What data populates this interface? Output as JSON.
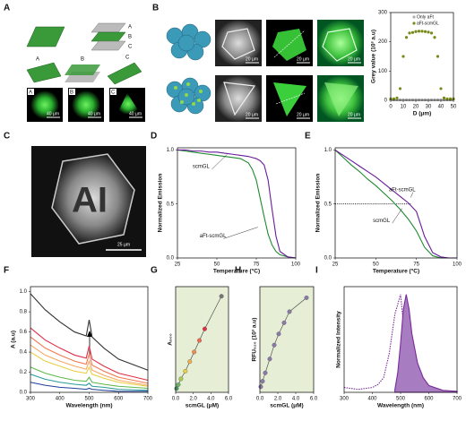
{
  "figure": {
    "panel_labels": [
      "A",
      "B",
      "C",
      "D",
      "E",
      "F",
      "G",
      "H",
      "I"
    ],
    "a_stack_labels": [
      "A",
      "B",
      "C"
    ],
    "a_plane_labels": [
      "A",
      "B",
      "C"
    ],
    "a_image_labels": [
      "A",
      "B",
      "C"
    ],
    "a_scale_bars": [
      "40 µm",
      "40 µm",
      "40 µm"
    ],
    "b_scale_bars": [
      "20 µm",
      "20 µm",
      "20 µm",
      "20 µm",
      "20 µm",
      "20 µm"
    ],
    "c_image_text": "AI",
    "c_scale_bar": "25 µm"
  },
  "chart_data": [
    {
      "type": "scatter",
      "ylabel": "Grey value (10³ a.u)",
      "xlabel": "D (μm)",
      "xlim": [
        0,
        50
      ],
      "ylim": [
        0,
        300
      ],
      "xticks": [
        0,
        10,
        20,
        30,
        40,
        50
      ],
      "yticks": [
        0,
        100,
        200,
        300
      ],
      "legend": "top-right",
      "x": [
        0,
        2.5,
        5,
        7.5,
        10,
        12.5,
        15,
        17.5,
        20,
        22.5,
        25,
        27.5,
        30,
        32.5,
        35,
        37.5,
        40,
        42.5,
        45,
        47.5,
        50
      ],
      "series": [
        {
          "name": "Only aFt",
          "color": "#b0b0b0",
          "values": [
            2,
            2,
            2,
            2,
            2,
            2,
            2,
            2,
            2,
            2,
            2,
            2,
            2,
            2,
            2,
            2,
            2,
            2,
            2,
            2,
            2
          ]
        },
        {
          "name": "aFt-scmGL",
          "color": "#7a8a1a",
          "values": [
            5,
            5,
            8,
            40,
            150,
            215,
            230,
            232,
            235,
            236,
            236,
            235,
            233,
            230,
            215,
            150,
            40,
            8,
            5,
            5,
            5
          ]
        }
      ]
    },
    {
      "type": "line",
      "ylabel": "Normalized Emission",
      "xlabel": "Temperature (°C)",
      "xlim": [
        25,
        100
      ],
      "ylim": [
        0,
        1.02
      ],
      "xticks": [
        25,
        50,
        75,
        100
      ],
      "yticks": [
        {
          "value": 0,
          "label": "0.0"
        },
        0.5,
        {
          "value": 1,
          "label": "1.0"
        }
      ],
      "x": [
        25,
        30,
        35,
        40,
        45,
        50,
        55,
        60,
        65,
        70,
        72.5,
        75,
        77.5,
        80,
        82.5,
        85,
        87.5,
        90,
        95,
        100
      ],
      "series": [
        {
          "name": "scmGL",
          "color": "#1e8a2e",
          "values": [
            1.0,
            0.99,
            0.98,
            0.97,
            0.96,
            0.95,
            0.94,
            0.93,
            0.92,
            0.88,
            0.82,
            0.72,
            0.55,
            0.38,
            0.22,
            0.12,
            0.06,
            0.03,
            0.01,
            0.0
          ]
        },
        {
          "name": "aFt-scmGL",
          "color": "#6a1b9a",
          "values": [
            1.0,
            1.0,
            0.99,
            0.99,
            0.98,
            0.98,
            0.97,
            0.96,
            0.95,
            0.94,
            0.93,
            0.92,
            0.9,
            0.86,
            0.72,
            0.45,
            0.2,
            0.06,
            0.01,
            0.0
          ]
        }
      ]
    },
    {
      "type": "line",
      "ylabel": "Normalized Emission",
      "xlabel": "Temperature (°C)",
      "xlim": [
        25,
        100
      ],
      "ylim": [
        0,
        1.02
      ],
      "xticks": [
        25,
        50,
        75,
        100
      ],
      "yticks": [
        {
          "value": 0,
          "label": "0.0"
        },
        0.5,
        {
          "value": 1,
          "label": "1.0"
        }
      ],
      "hline": 0.5,
      "x": [
        25,
        30,
        35,
        40,
        45,
        50,
        55,
        60,
        65,
        70,
        75,
        80,
        85,
        90,
        95,
        100
      ],
      "series": [
        {
          "name": "scmGL",
          "color": "#1e8a2e",
          "values": [
            1.0,
            0.93,
            0.86,
            0.8,
            0.73,
            0.67,
            0.6,
            0.53,
            0.45,
            0.36,
            0.25,
            0.1,
            0.02,
            0,
            0,
            0
          ]
        },
        {
          "name": "aFt-scmGL",
          "color": "#6a1b9a",
          "values": [
            1.0,
            0.95,
            0.9,
            0.85,
            0.8,
            0.75,
            0.69,
            0.63,
            0.57,
            0.51,
            0.43,
            0.2,
            0.05,
            0.01,
            0,
            0
          ]
        }
      ]
    },
    {
      "type": "line",
      "ylabel": "A (a.u)",
      "xlabel": "Wavelength (nm)",
      "xlim": [
        300,
        700
      ],
      "ylim": [
        0,
        1.05
      ],
      "xticks": [
        300,
        400,
        500,
        600,
        700
      ],
      "yticks": [
        {
          "value": 0,
          "label": "0.0"
        },
        0.2,
        0.4,
        0.6,
        0.8,
        {
          "value": 1,
          "label": "1.0"
        }
      ],
      "x": [
        300,
        350,
        400,
        450,
        490,
        500,
        510,
        550,
        600,
        700
      ],
      "series": [
        {
          "color": "#333333",
          "values": [
            0.98,
            0.82,
            0.7,
            0.6,
            0.56,
            0.72,
            0.55,
            0.44,
            0.33,
            0.22
          ]
        },
        {
          "color": "#e0304a",
          "values": [
            0.64,
            0.52,
            0.44,
            0.37,
            0.34,
            0.46,
            0.33,
            0.26,
            0.19,
            0.12
          ]
        },
        {
          "color": "#f07a50",
          "values": [
            0.55,
            0.44,
            0.37,
            0.31,
            0.28,
            0.38,
            0.27,
            0.21,
            0.15,
            0.09
          ]
        },
        {
          "color": "#f5a860",
          "values": [
            0.47,
            0.37,
            0.31,
            0.26,
            0.23,
            0.31,
            0.22,
            0.17,
            0.12,
            0.07
          ]
        },
        {
          "color": "#e8cf40",
          "values": [
            0.4,
            0.31,
            0.26,
            0.21,
            0.19,
            0.25,
            0.18,
            0.14,
            0.1,
            0.06
          ]
        },
        {
          "color": "#5fb84a",
          "values": [
            0.25,
            0.19,
            0.15,
            0.12,
            0.11,
            0.15,
            0.1,
            0.08,
            0.06,
            0.04
          ]
        },
        {
          "color": "#2a9a9a",
          "values": [
            0.18,
            0.13,
            0.1,
            0.08,
            0.07,
            0.09,
            0.06,
            0.05,
            0.03,
            0.02
          ]
        },
        {
          "color": "#1f3f9a",
          "values": [
            0.1,
            0.07,
            0.05,
            0.04,
            0.03,
            0.04,
            0.03,
            0.02,
            0.01,
            0.01
          ]
        }
      ]
    },
    {
      "type": "scatter",
      "connect": true,
      "background": "#e6efd6",
      "ylabel": "A₅₀₀",
      "xlabel": "scmGL (μM)",
      "xlim": [
        0,
        6
      ],
      "ylim": [
        0,
        0.55
      ],
      "xticks": [
        {
          "value": 0,
          "label": "0.0"
        },
        {
          "value": 2,
          "label": "2.0"
        },
        {
          "value": 4,
          "label": "4.0"
        },
        {
          "value": 6,
          "label": "6.0"
        }
      ],
      "x": [
        0.1,
        0.3,
        0.6,
        1.1,
        1.6,
        2.1,
        2.7,
        3.3,
        5.2
      ],
      "series": [
        {
          "color": "#555555",
          "point_colors": [
            "#4a9a6a",
            "#6ab46a",
            "#a8c850",
            "#e8d040",
            "#f0b050",
            "#f08a50",
            "#f06a50",
            "#e03040",
            "#777777"
          ],
          "values": [
            0.02,
            0.04,
            0.07,
            0.11,
            0.16,
            0.21,
            0.27,
            0.33,
            0.5
          ]
        }
      ]
    },
    {
      "type": "scatter",
      "connect": true,
      "background": "#e6efd6",
      "ylabel": "RFU₅₂₀ (10³ a.u)",
      "xlabel": "scmGL (μM)",
      "xlim": [
        0,
        6
      ],
      "ylim": [
        0,
        38
      ],
      "xticks": [
        {
          "value": 0,
          "label": "0.0"
        },
        {
          "value": 2,
          "label": "2.0"
        },
        {
          "value": 4,
          "label": "4.0"
        },
        {
          "value": 6,
          "label": "6.0"
        }
      ],
      "x": [
        0.1,
        0.3,
        0.6,
        1.1,
        1.6,
        2.1,
        2.7,
        3.3,
        5.2
      ],
      "series": [
        {
          "color": "#555555",
          "point_colors": [
            "#8a7aa8",
            "#8a7aa8",
            "#8a7aa8",
            "#8a7aa8",
            "#8a7aa8",
            "#8a7aa8",
            "#8a7aa8",
            "#8a7aa8",
            "#8a7aa8"
          ],
          "values": [
            2,
            4,
            7,
            12,
            17,
            21,
            25,
            29,
            34
          ]
        }
      ]
    },
    {
      "type": "line",
      "ylabel": "Normalized Intensity",
      "xlabel": "Wavelength (nm)",
      "xlim": [
        300,
        700
      ],
      "ylim": [
        0,
        1.08
      ],
      "xticks": [
        300,
        400,
        500,
        600,
        700
      ],
      "x": [
        300,
        350,
        400,
        420,
        440,
        460,
        480,
        490,
        500,
        510,
        520,
        530,
        540,
        560,
        580,
        600,
        650,
        700
      ],
      "series": [
        {
          "color": "#7a2a9a",
          "dash": true,
          "values": [
            0.05,
            0.03,
            0.05,
            0.08,
            0.15,
            0.4,
            0.8,
            0.9,
            1.0,
            0.7,
            0.3,
            0.1,
            0.03,
            0,
            0,
            0,
            0,
            0
          ]
        },
        {
          "color": "#7a2a9a",
          "fill": "#a77cc0",
          "values": [
            null,
            null,
            null,
            null,
            null,
            null,
            0.03,
            0.2,
            0.5,
            0.85,
            1.0,
            0.85,
            0.6,
            0.3,
            0.15,
            0.07,
            0.02,
            0.01
          ]
        }
      ]
    }
  ]
}
